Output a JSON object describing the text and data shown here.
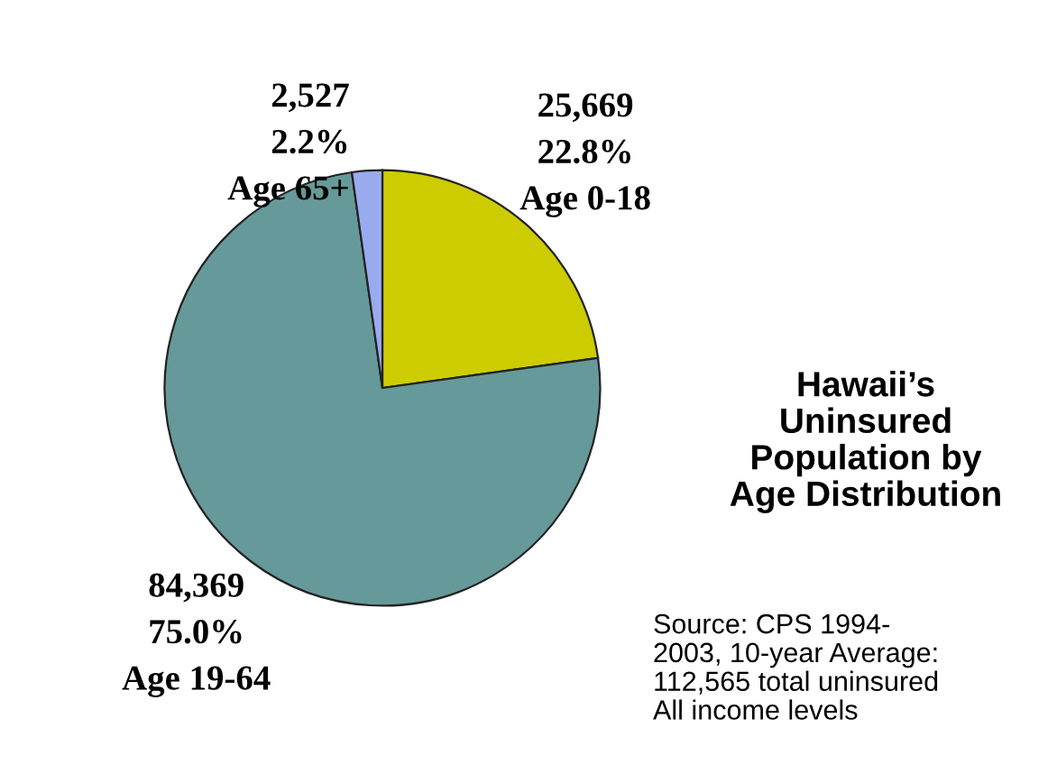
{
  "chart_data": {
    "type": "pie",
    "title": "Hawaii’s\nUninsured\nPopulation by\nAge Distribution",
    "categories": [
      "Age 0-18",
      "Age 19-64",
      "Age 65+"
    ],
    "values": [
      25669,
      84369,
      2527
    ],
    "value_labels": [
      "25,669\n22.8%",
      "84,369\n75.0%",
      "2,527\n2.2%"
    ],
    "colors": [
      "#cccc00",
      "#669999",
      "#99aaee"
    ],
    "annotations": [
      "Source: CPS 1994-\n2003, 10-year Average:\n112,565 total uninsured\nAll income levels"
    ],
    "legend": false
  }
}
